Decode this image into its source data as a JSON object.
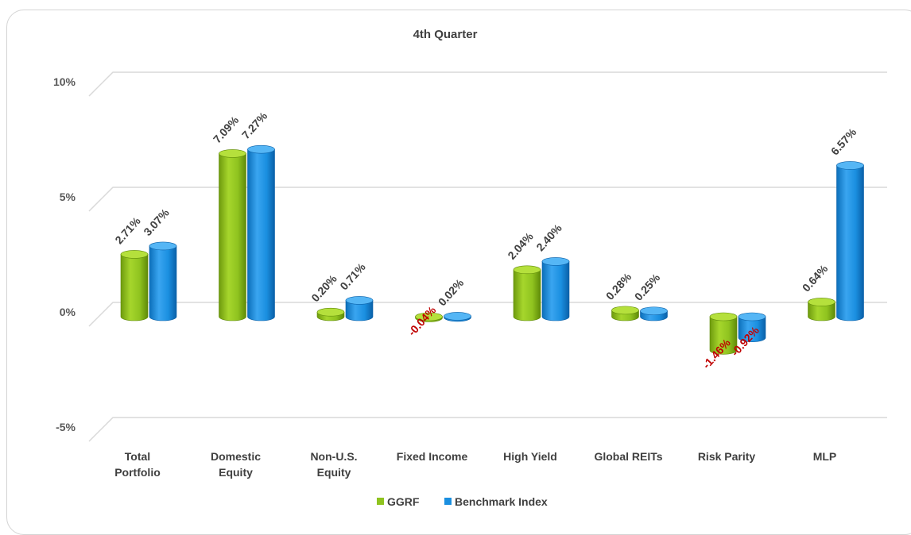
{
  "chart_data": {
    "type": "bar",
    "title": "4th Quarter",
    "categories": [
      [
        "Total",
        "Portfolio"
      ],
      [
        "Domestic",
        "Equity"
      ],
      [
        "Non-U.S.",
        "Equity"
      ],
      [
        "Fixed Income"
      ],
      [
        "High Yield"
      ],
      [
        "Global REITs"
      ],
      [
        "Risk Parity"
      ],
      [
        "MLP"
      ]
    ],
    "series": [
      {
        "name": "GGRF",
        "color": "#8fc31f",
        "values": [
          2.71,
          7.09,
          0.2,
          -0.04,
          2.04,
          0.28,
          -1.46,
          0.64
        ],
        "labels": [
          "2.71%",
          "7.09%",
          "0.20%",
          "-0.04%",
          "2.04%",
          "0.28%",
          "-1.46%",
          "0.64%"
        ]
      },
      {
        "name": "Benchmark Index",
        "color": "#1a8fe0",
        "values": [
          3.07,
          7.27,
          0.71,
          0.02,
          2.4,
          0.25,
          -0.92,
          6.57
        ],
        "labels": [
          "3.07%",
          "7.27%",
          "0.71%",
          "0.02%",
          "2.40%",
          "0.25%",
          "-0.92%",
          "6.57%"
        ]
      }
    ],
    "ylim": [
      -5,
      10
    ],
    "yticks": [
      {
        "value": 10,
        "label": "10%"
      },
      {
        "value": 5,
        "label": "5%"
      },
      {
        "value": 0,
        "label": "0%"
      },
      {
        "value": -5,
        "label": "-5%"
      }
    ],
    "grid": true,
    "legend_position": "bottom",
    "positive_label_color": "#404040",
    "negative_label_color": "#c00000"
  }
}
